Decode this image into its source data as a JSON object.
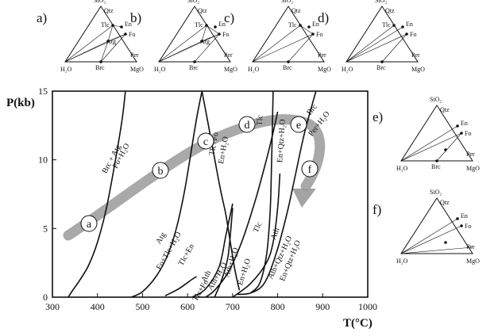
{
  "panels_top": [
    {
      "letter": "a)",
      "sio2": "SiO₂",
      "qtz": "Qtz",
      "tlc": "Tlc",
      "en": "En",
      "fo": "Fo",
      "atg": "Atg",
      "per": "Per",
      "h2o": "H₂O",
      "brc": "Brc",
      "mgo": "MgO"
    },
    {
      "letter": "b)",
      "sio2": "SiO₂",
      "qtz": "Qtz",
      "tlc": "Tlc",
      "en": "En",
      "fo": "Fo",
      "atg": "Atg",
      "per": "Per",
      "h2o": "H₂O",
      "brc": "Brc",
      "mgo": "MgO"
    },
    {
      "letter": "c)",
      "sio2": "SiO₂",
      "qtz": "Qtz",
      "tlc": "Tlc",
      "en": "En",
      "fo": "Fo",
      "atg": "",
      "per": "Per",
      "h2o": "H₂O",
      "brc": "Brc",
      "mgo": "MgO"
    },
    {
      "letter": "d)",
      "sio2": "SiO₂",
      "qtz": "Qtz",
      "tlc": "Tlc",
      "en": "En",
      "fo": "Fo",
      "atg": "",
      "per": "Per",
      "h2o": "H₂O",
      "brc": "Brc",
      "mgo": "MgO"
    }
  ],
  "panels_right": [
    {
      "letter": "e)",
      "sio2": "SiO₂",
      "qtz": "Qtz",
      "tlc": "",
      "en": "En",
      "fo": "Fo",
      "atg": "",
      "per": "Per",
      "h2o": "H₂O",
      "brc": "Brc",
      "mgo": "MgO"
    },
    {
      "letter": "f)",
      "sio2": "SiO₂",
      "qtz": "Qtz",
      "tlc": "",
      "en": "En",
      "fo": "Fo",
      "atg": "",
      "per": "Per",
      "h2o": "H₂O",
      "brc": "",
      "mgo": "MgO"
    }
  ],
  "chart_data": {
    "type": "line",
    "xlabel": "T(°C)",
    "ylabel": "P(kb)",
    "xlim": [
      300,
      1000
    ],
    "ylim": [
      0,
      15
    ],
    "x_ticks": [
      300,
      400,
      500,
      600,
      700,
      800,
      900,
      1000
    ],
    "y_ticks": [
      0,
      5,
      10,
      15
    ],
    "reactions": [
      {
        "labels": [
          "Brc + Atg",
          "Fo+H₂O"
        ],
        "points": [
          [
            335,
            0
          ],
          [
            345,
            0.5
          ],
          [
            360,
            1.2
          ],
          [
            380,
            2.3
          ],
          [
            400,
            4
          ],
          [
            420,
            6.5
          ],
          [
            440,
            10
          ],
          [
            455,
            13
          ],
          [
            462,
            15
          ]
        ]
      },
      {
        "labels": [
          "Atg",
          "Fo+Tlc+H₂O"
        ],
        "points": [
          [
            475,
            0
          ],
          [
            500,
            0.4
          ],
          [
            530,
            1.5
          ],
          [
            555,
            3
          ],
          [
            575,
            5
          ],
          [
            592,
            7.5
          ],
          [
            605,
            10
          ],
          [
            620,
            13
          ],
          [
            632,
            15
          ]
        ]
      },
      {
        "labels": [
          "Tlc+Fo",
          "En+H₂O"
        ],
        "points": [
          [
            632,
            15
          ],
          [
            655,
            11
          ],
          [
            672,
            8
          ],
          [
            685,
            6
          ],
          [
            695,
            4
          ],
          [
            705,
            2
          ],
          [
            715,
            0.5
          ]
        ]
      },
      {
        "labels": [
          "Tlc",
          "En+Qtz+H₂O"
        ],
        "points": [
          [
            790,
            15
          ],
          [
            788,
            12
          ],
          [
            786,
            9
          ],
          [
            783,
            6
          ],
          [
            775,
            3
          ],
          [
            760,
            1
          ],
          [
            740,
            0.3
          ]
        ]
      },
      {
        "labels": [
          "Brc",
          "Per+H₂O"
        ],
        "points": [
          [
            885,
            15
          ],
          [
            860,
            12
          ],
          [
            840,
            9
          ],
          [
            820,
            6
          ],
          [
            795,
            3
          ],
          [
            770,
            1
          ],
          [
            740,
            0.3
          ],
          [
            710,
            0.2
          ]
        ]
      },
      {
        "labels": [
          "Tlc+En",
          "Ath"
        ],
        "points": [
          [
            550,
            0.1
          ],
          [
            580,
            0.6
          ],
          [
            610,
            1.3
          ],
          [
            620,
            1.5
          ]
        ]
      },
      {
        "labels": [
          "Tlc",
          "Ath+Qtz+H₂O"
        ],
        "points": [
          [
            640,
            0
          ],
          [
            660,
            0.5
          ],
          [
            690,
            1.8
          ],
          [
            720,
            4
          ],
          [
            750,
            7
          ],
          [
            775,
            10
          ],
          [
            790,
            12
          ],
          [
            800,
            13.5
          ]
        ]
      },
      {
        "labels": [
          "Tlc+Fo",
          "Ath+H₂O"
        ],
        "points": [
          [
            610,
            0
          ],
          [
            640,
            0.6
          ],
          [
            670,
            2.2
          ],
          [
            685,
            4.5
          ],
          [
            700,
            6.8
          ]
        ]
      },
      {
        "labels": [
          "Ath+H₂O",
          "En+H₂O"
        ],
        "points": [
          [
            660,
            0
          ],
          [
            675,
            1.2
          ],
          [
            690,
            3
          ],
          [
            700,
            6.5
          ]
        ]
      },
      {
        "labels": [
          "Ath",
          "En+Qtz+H₂O"
        ],
        "points": [
          [
            700,
            0
          ],
          [
            740,
            1
          ],
          [
            775,
            2.5
          ],
          [
            790,
            4
          ],
          [
            800,
            6.5
          ],
          [
            805,
            9
          ]
        ]
      }
    ],
    "path_labels": [
      "a",
      "b",
      "c",
      "d",
      "e",
      "f"
    ]
  }
}
